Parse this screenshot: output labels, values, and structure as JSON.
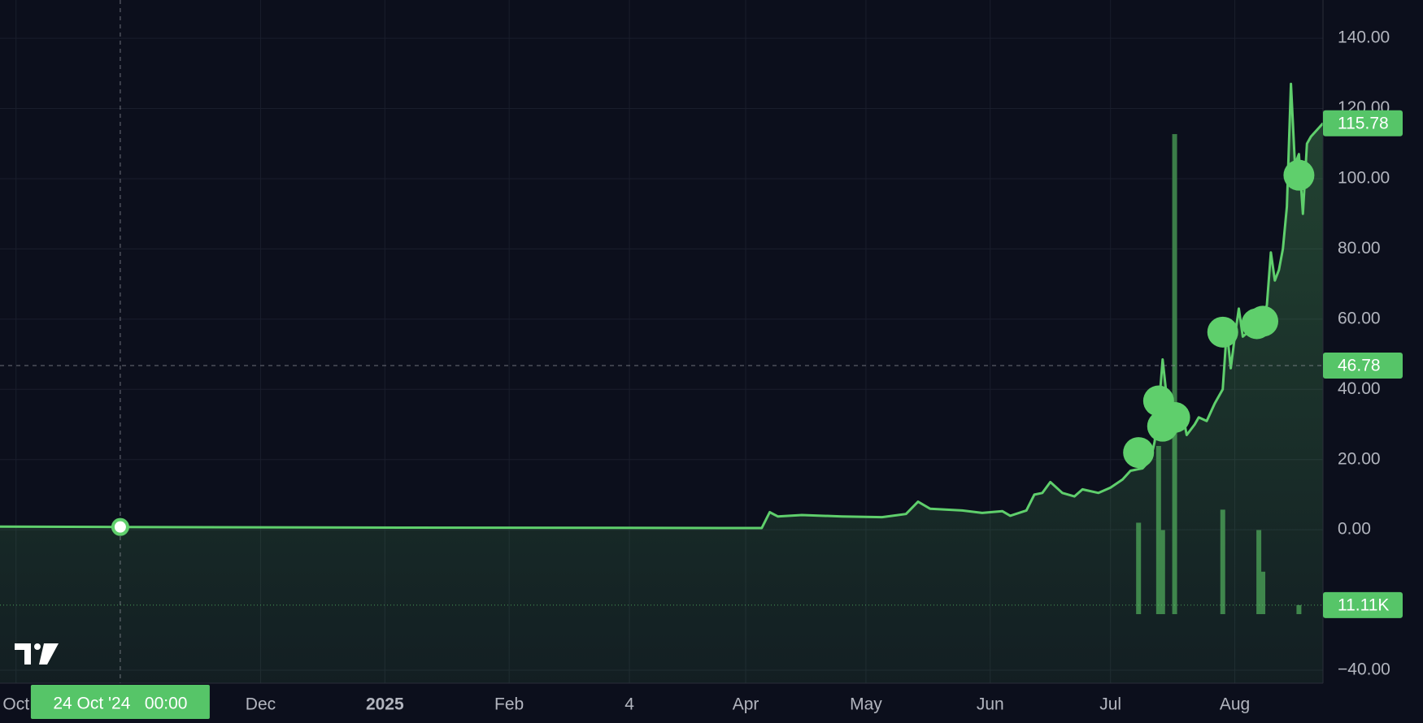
{
  "chart_data": {
    "type": "area",
    "color": "#5fcf6c",
    "x": [
      0,
      30,
      100,
      190,
      192,
      194,
      200,
      210,
      220,
      226,
      229,
      232,
      240,
      245,
      250,
      252,
      256,
      258,
      260,
      262,
      265,
      268,
      270,
      274,
      277,
      280,
      282,
      285,
      287,
      288,
      289,
      290,
      291,
      292,
      293,
      295,
      296,
      298,
      299,
      301,
      303,
      305,
      306,
      307,
      308,
      309,
      310,
      311,
      313,
      315,
      316,
      317,
      318,
      319,
      320,
      321,
      322,
      323,
      324,
      325,
      326,
      327,
      330
    ],
    "values": [
      0.9,
      0.8,
      0.6,
      0.5,
      5.0,
      3.8,
      4.2,
      3.8,
      3.6,
      4.5,
      8.0,
      6.0,
      5.5,
      4.8,
      5.3,
      4.0,
      5.5,
      10.0,
      10.5,
      13.6,
      10.5,
      9.5,
      11.5,
      10.5,
      12,
      14.3,
      16.8,
      17.5,
      20,
      25,
      34,
      48.5,
      38,
      34,
      30,
      33,
      27,
      30,
      32,
      31,
      36,
      40,
      57,
      46,
      55,
      63,
      55,
      56,
      60,
      60,
      64,
      79,
      71,
      74,
      80,
      92,
      127,
      104,
      107,
      90,
      110,
      112,
      115.78
    ],
    "volume": {
      "color": "#3b7d48",
      "x": [
        284,
        289,
        290,
        293,
        305,
        314,
        315,
        324
      ],
      "values": [
        112000,
        206000,
        103000,
        588000,
        128000,
        103000,
        52000,
        11110
      ],
      "ylim": [
        0,
        600000
      ],
      "last": {
        "value": 11110,
        "label": "11.11K"
      }
    },
    "markers": {
      "color": "#5fcf6c",
      "x": [
        284,
        289,
        290,
        293,
        305,
        313.5,
        315,
        324
      ],
      "y": [
        22,
        36.7,
        29.5,
        32,
        56.3,
        58.7,
        59.4,
        101
      ]
    },
    "last_price": 115.78,
    "crosshair": {
      "x": 30,
      "x_label": "24 Oct '24   00:00",
      "y": 46.78
    },
    "xlim": [
      0,
      330
    ],
    "xticks": [
      {
        "value": 4,
        "label": "Oct"
      },
      {
        "value": 65,
        "label": "Dec"
      },
      {
        "value": 96,
        "label": "2025"
      },
      {
        "value": 127,
        "label": "Feb"
      },
      {
        "value": 157,
        "label": "4"
      },
      {
        "value": 186,
        "label": "Apr"
      },
      {
        "value": 216,
        "label": "May"
      },
      {
        "value": 247,
        "label": "Jun"
      },
      {
        "value": 277,
        "label": "Jul"
      },
      {
        "value": 308,
        "label": "Aug"
      }
    ],
    "ylim": [
      -43.7,
      150.9
    ],
    "yticks": [
      {
        "value": 140,
        "label": "140.00"
      },
      {
        "value": 120,
        "label": "120.00"
      },
      {
        "value": 100,
        "label": "100.00"
      },
      {
        "value": 80,
        "label": "80.00"
      },
      {
        "value": 60,
        "label": "60.00"
      },
      {
        "value": 40,
        "label": "40.00"
      },
      {
        "value": 20,
        "label": "20.00"
      },
      {
        "value": 0,
        "label": "0.00"
      },
      {
        "value": -40,
        "label": "−40.00"
      }
    ],
    "grid": true
  }
}
